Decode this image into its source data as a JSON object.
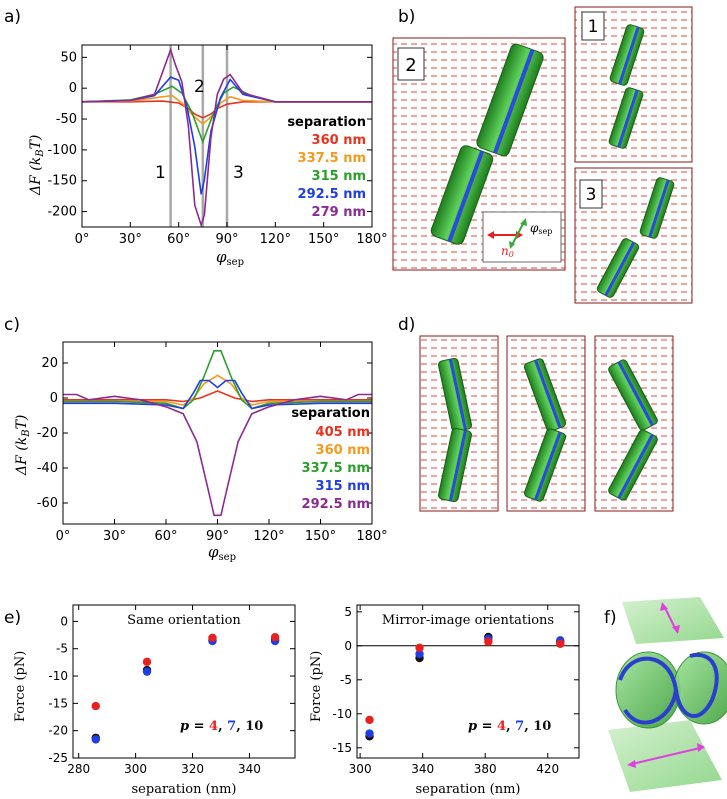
{
  "panels": {
    "a": "a)",
    "b": "b)",
    "c": "c)",
    "d": "d)",
    "e": "e)",
    "f": "f)"
  },
  "panel_a": {
    "ylabel_main": "ΔF (k",
    "ylabel_sub": "B",
    "ylabel_end": "T)",
    "xlabel_main": "φ",
    "xlabel_sub": "sep",
    "legend_title": "separation",
    "markers": [
      "1",
      "2",
      "3"
    ],
    "colors": [
      "#e8321e",
      "#f39a1c",
      "#2aa02a",
      "#1f3ee6",
      "#8c2a93"
    ]
  },
  "panel_b": {
    "boxes": [
      "2",
      "1",
      "3"
    ],
    "inset_phi": "φ",
    "inset_phi_sub": "sep",
    "inset_n": "n",
    "inset_n_sub": "0"
  },
  "panel_c": {
    "ylabel_main": "ΔF (k",
    "ylabel_sub": "B",
    "ylabel_end": "T)",
    "xlabel_main": "φ",
    "xlabel_sub": "sep",
    "legend_title": "separation"
  },
  "panel_e": {
    "left_title": "Same orientation",
    "right_title": "Mirror-image orientations",
    "ylabel": "Force (pN)",
    "xlabel": "separation (nm)",
    "p_label": "p =",
    "p_values": [
      "4",
      "7",
      "10"
    ],
    "p_colors": [
      "#e8201e",
      "#1f3ee6",
      "#111111"
    ]
  },
  "chart_data": [
    {
      "type": "line",
      "panel": "a",
      "ylim": [
        -225,
        70
      ],
      "xlim": [
        0,
        180
      ],
      "x_ticks": [
        "0°",
        "30°",
        "60°",
        "90°",
        "120°",
        "150°",
        "180°"
      ],
      "y_ticks": [
        "50",
        "0",
        "-50",
        "-100",
        "-150",
        "-200"
      ],
      "vlines": [
        55,
        75,
        90
      ],
      "series": [
        {
          "name": "360 nm",
          "color": "#e8321e",
          "x": [
            0,
            30,
            50,
            60,
            66,
            70,
            75,
            80,
            84,
            90,
            100,
            120,
            150,
            180
          ],
          "y": [
            -22,
            -22,
            -21,
            -24,
            -33,
            -42,
            -48,
            -42,
            -33,
            -26,
            -22,
            -22,
            -22,
            -22
          ]
        },
        {
          "name": "337.5 nm",
          "color": "#f39a1c",
          "x": [
            0,
            30,
            50,
            56,
            62,
            68,
            75,
            82,
            86,
            92,
            100,
            120,
            150,
            180
          ],
          "y": [
            -22,
            -21,
            -14,
            -12,
            -24,
            -42,
            -58,
            -42,
            -24,
            -14,
            -20,
            -22,
            -22,
            -22
          ]
        },
        {
          "name": "315 nm",
          "color": "#2aa02a",
          "x": [
            0,
            30,
            45,
            56,
            62,
            68,
            75,
            82,
            88,
            94,
            105,
            120,
            150,
            180
          ],
          "y": [
            -22,
            -19,
            -10,
            3,
            -8,
            -38,
            -87,
            -38,
            -8,
            2,
            -12,
            -22,
            -22,
            -22
          ]
        },
        {
          "name": "292.5 nm",
          "color": "#1f3ee6",
          "x": [
            0,
            30,
            45,
            55,
            60,
            65,
            70,
            74,
            76,
            80,
            86,
            92,
            100,
            120,
            150,
            180
          ],
          "y": [
            -22,
            -20,
            -12,
            18,
            13,
            -28,
            -95,
            -172,
            -148,
            -70,
            -15,
            14,
            -10,
            -22,
            -22,
            -22
          ]
        },
        {
          "name": "279 nm",
          "color": "#8c2a93",
          "x": [
            0,
            30,
            45,
            55,
            58,
            62,
            66,
            70,
            74,
            76,
            80,
            84,
            88,
            92,
            100,
            120,
            150,
            180
          ],
          "y": [
            -22,
            -20,
            -10,
            62,
            38,
            10,
            -60,
            -190,
            -222,
            -205,
            -80,
            -10,
            15,
            22,
            -8,
            -22,
            -22,
            -22
          ]
        }
      ]
    },
    {
      "type": "line",
      "panel": "c",
      "ylim": [
        -72,
        32
      ],
      "xlim": [
        0,
        180
      ],
      "x_ticks": [
        "0°",
        "30°",
        "60°",
        "90°",
        "120°",
        "150°",
        "180°"
      ],
      "y_ticks": [
        "20",
        "0",
        "-20",
        "-40",
        "-60"
      ],
      "series": [
        {
          "name": "405 nm",
          "color": "#e8321e",
          "x": [
            0,
            30,
            60,
            70,
            80,
            90,
            100,
            110,
            120,
            150,
            180
          ],
          "y": [
            -1,
            -1,
            -1,
            -2,
            0,
            4,
            0,
            -2,
            -1,
            -1,
            -1
          ]
        },
        {
          "name": "360 nm",
          "color": "#f39a1c",
          "x": [
            0,
            30,
            60,
            70,
            76,
            82,
            90,
            98,
            104,
            110,
            120,
            150,
            180
          ],
          "y": [
            -2,
            -2,
            -2,
            -4,
            0,
            8,
            13,
            8,
            0,
            -4,
            -2,
            -2,
            -2
          ]
        },
        {
          "name": "337.5 nm",
          "color": "#2aa02a",
          "x": [
            0,
            30,
            60,
            70,
            76,
            82,
            88,
            92,
            98,
            104,
            110,
            120,
            150,
            180
          ],
          "y": [
            -2,
            -2,
            -3,
            -6,
            -1,
            12,
            27,
            27,
            12,
            -1,
            -6,
            -3,
            -2,
            -2
          ]
        },
        {
          "name": "315 nm",
          "color": "#1f3ee6",
          "x": [
            0,
            30,
            60,
            70,
            76,
            80,
            85,
            90,
            95,
            100,
            104,
            110,
            120,
            150,
            180
          ],
          "y": [
            -3,
            -3,
            -4,
            -6,
            3,
            10,
            10,
            6,
            10,
            10,
            3,
            -6,
            -4,
            -3,
            -3
          ]
        },
        {
          "name": "292.5 nm",
          "color": "#8c2a93",
          "x": [
            0,
            8,
            15,
            30,
            45,
            60,
            70,
            78,
            84,
            88,
            92,
            96,
            102,
            110,
            120,
            135,
            150,
            165,
            172,
            180
          ],
          "y": [
            2,
            2,
            -1,
            1,
            -1,
            -5,
            -9,
            -25,
            -50,
            -67,
            -67,
            -50,
            -25,
            -9,
            -5,
            -1,
            1,
            -1,
            2,
            2
          ]
        }
      ]
    },
    {
      "type": "scatter",
      "panel": "e-left",
      "title": "Same orientation",
      "xlabel": "separation (nm)",
      "ylabel": "Force (pN)",
      "xlim": [
        278,
        356
      ],
      "ylim": [
        -25,
        3
      ],
      "x_ticks": [
        280,
        300,
        320,
        340
      ],
      "y_ticks": [
        0,
        -5,
        -10,
        -15,
        -20,
        -25
      ],
      "series": [
        {
          "name": "4",
          "color": "#e8201e",
          "x": [
            286,
            304,
            327,
            349
          ],
          "y": [
            -15.5,
            -7.4,
            -3.0,
            -2.9
          ]
        },
        {
          "name": "7",
          "color": "#1f3ee6",
          "x": [
            286,
            304,
            327,
            349
          ],
          "y": [
            -21.6,
            -9.2,
            -3.6,
            -3.6
          ]
        },
        {
          "name": "10",
          "color": "#111111",
          "x": [
            286,
            304,
            327,
            349
          ],
          "y": [
            -21.3,
            -8.9,
            -3.4,
            -3.4
          ]
        }
      ]
    },
    {
      "type": "scatter",
      "panel": "e-right",
      "title": "Mirror-image orientations",
      "xlabel": "separation (nm)",
      "ylabel": "Force (pN)",
      "xlim": [
        298,
        440
      ],
      "ylim": [
        -16.5,
        6
      ],
      "x_ticks": [
        300,
        340,
        380,
        420
      ],
      "y_ticks": [
        5,
        0,
        -5,
        -10,
        -15
      ],
      "hline": 0,
      "series": [
        {
          "name": "4",
          "color": "#e8201e",
          "x": [
            306,
            338,
            382,
            428
          ],
          "y": [
            -10.9,
            -0.3,
            0.6,
            0.3
          ]
        },
        {
          "name": "7",
          "color": "#1f3ee6",
          "x": [
            306,
            338,
            382,
            428
          ],
          "y": [
            -12.9,
            -1.2,
            1.0,
            0.8
          ]
        },
        {
          "name": "10",
          "color": "#111111",
          "x": [
            306,
            338,
            382,
            428
          ],
          "y": [
            -13.3,
            -1.8,
            1.3,
            0.6
          ]
        }
      ]
    }
  ]
}
